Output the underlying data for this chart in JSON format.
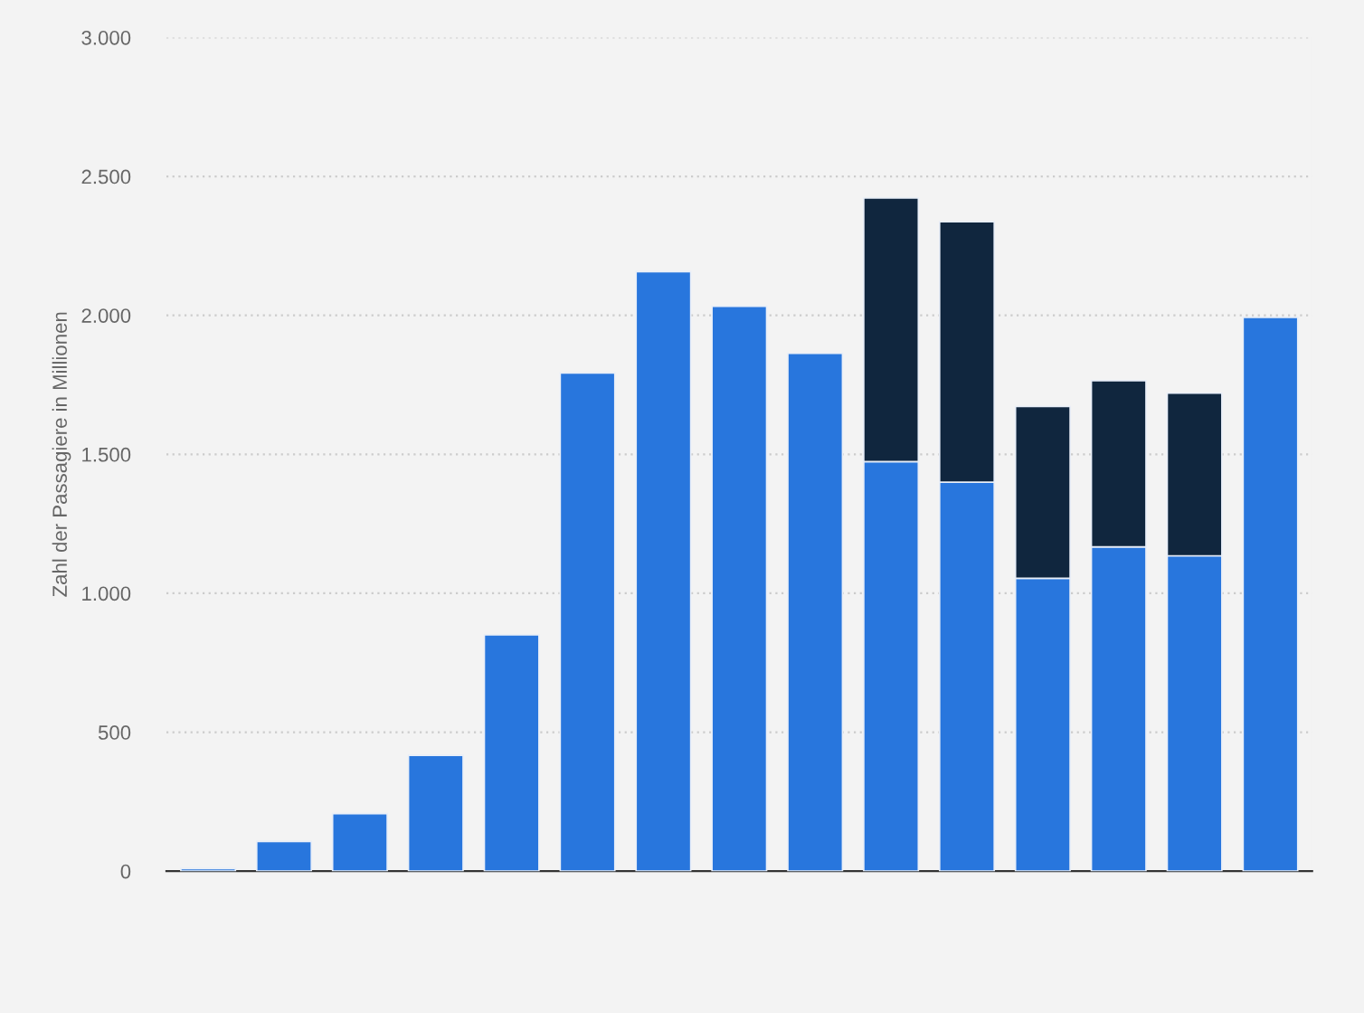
{
  "chart_data": {
    "type": "bar",
    "stacked": true,
    "ylabel": "Zahl der Passagiere in Millionen",
    "categories": [
      null,
      null,
      null,
      null,
      null,
      null,
      null,
      null,
      null,
      null,
      null,
      null,
      null,
      null,
      null
    ],
    "series": [
      {
        "color": "#2876dd",
        "values": [
          9,
          107,
          207,
          417,
          850,
          1793,
          2157,
          2033,
          1863,
          1474,
          1400,
          1054,
          1167,
          1135,
          1993
        ]
      },
      {
        "color": "#10263e",
        "values": [
          null,
          null,
          null,
          null,
          null,
          null,
          null,
          null,
          null,
          948,
          937,
          618,
          598,
          585,
          null
        ]
      }
    ],
    "ylim": [
      0,
      3000
    ],
    "yticks": [
      0,
      500,
      {
        "value": 1000,
        "label": "1.000"
      },
      {
        "value": 1500,
        "label": "1.500"
      },
      {
        "value": 2000,
        "label": "2.000"
      },
      {
        "value": 2500,
        "label": "2.500"
      },
      {
        "value": 3000,
        "label": "3.000"
      }
    ],
    "grid": "y",
    "legend": false
  }
}
